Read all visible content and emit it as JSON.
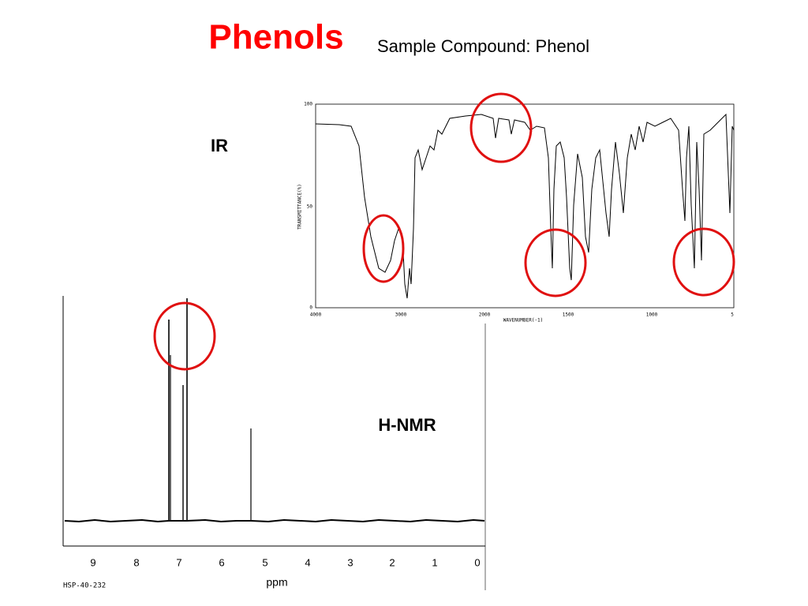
{
  "header": {
    "title": "Phenols",
    "subtitle": "Sample Compound: Phenol"
  },
  "ir": {
    "label": "IR",
    "y_axis_label": "TRANSMITTANCE(%)",
    "x_axis_label": "WAVENUMBER(-1)",
    "yticks": [
      "100",
      "50",
      "0"
    ],
    "xticks": [
      "4000",
      "3000",
      "2000",
      "1500",
      "1000",
      "5"
    ]
  },
  "nmr": {
    "label": "H-NMR",
    "x_axis_label": "ppm",
    "code": "HSP-40-232",
    "xticks": [
      "9",
      "8",
      "7",
      "6",
      "5",
      "4",
      "3",
      "2",
      "1",
      "0"
    ]
  }
}
